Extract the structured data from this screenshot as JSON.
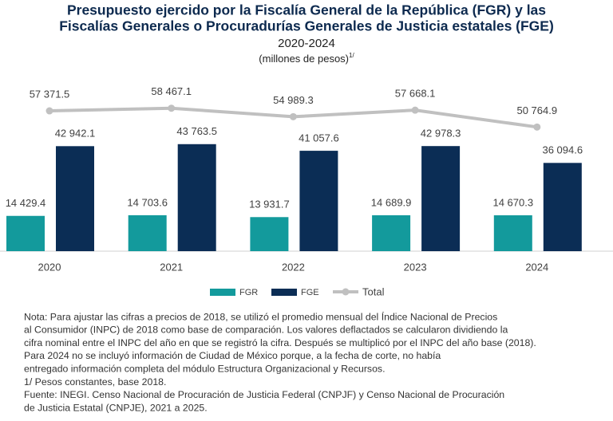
{
  "chart_data": {
    "type": "bar_line",
    "title": [
      "Presupuesto ejercido por la Fiscalía General de la República (FGR) y las",
      "Fiscalías Generales o Procuradurías Generales de Justicia estatales (FGE)"
    ],
    "subtitle": "2020-2024",
    "units": "(millones de pesos)",
    "units_note": "1/",
    "categories": [
      "2020",
      "2021",
      "2022",
      "2023",
      "2024"
    ],
    "ylim": [
      0,
      60000
    ],
    "series": [
      {
        "name": "FGR",
        "type": "bar",
        "color": "#139a9c",
        "values": [
          14429.4,
          14703.6,
          13931.7,
          14689.9,
          14670.3
        ],
        "value_labels": [
          "14 429.4",
          "14 703.6",
          "13 931.7",
          "14 689.9",
          "14 670.3"
        ]
      },
      {
        "name": "FGE",
        "type": "bar",
        "color": "#0b2d55",
        "values": [
          42942.1,
          43763.5,
          41057.6,
          42978.3,
          36094.6
        ],
        "value_labels": [
          "42 942.1",
          "43 763.5",
          "41 057.6",
          "42 978.3",
          "36 094.6"
        ]
      },
      {
        "name": "Total",
        "type": "line",
        "color": "#c0c0c0",
        "values": [
          57371.5,
          58467.1,
          54989.3,
          57668.1,
          50764.9
        ],
        "value_labels": [
          "57 371.5",
          "58 467.1",
          "54 989.3",
          "57 668.1",
          "50 764.9"
        ]
      }
    ],
    "notes": [
      "Nota: Para ajustar las cifras a precios de 2018, se utilizó el promedio mensual del Índice Nacional de Precios",
      "al Consumidor (INPC) de 2018 como base de comparación. Los valores deflactados se calcularon dividiendo la",
      "cifra nominal entre el INPC del año en que se registró la cifra. Después se multiplicó por el INPC del año base (2018).",
      "Para 2024 no se incluyó información de Ciudad de México porque, a la fecha de corte, no había",
      "entregado información completa del módulo Estructura Organizacional y Recursos.",
      "1/ Pesos constantes, base 2018.",
      "Fuente: INEGI. Censo Nacional de Procuración de Justicia Federal (CNPJF) y Censo Nacional de Procuración",
      "de Justicia Estatal (CNPJE), 2021 a 2025."
    ]
  }
}
